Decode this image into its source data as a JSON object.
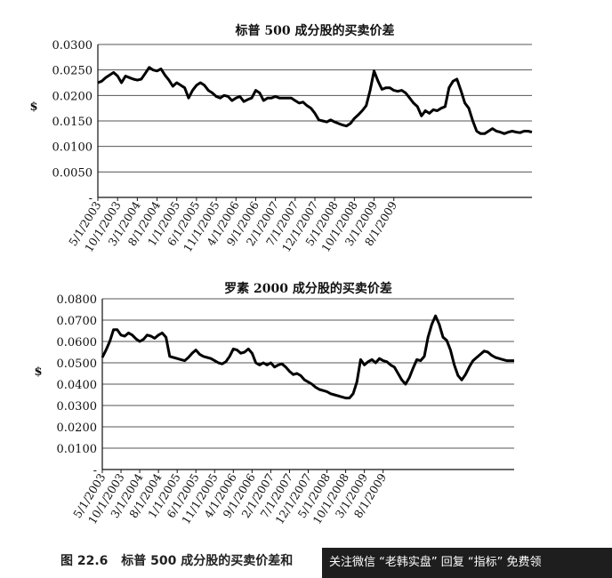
{
  "chart_data": [
    {
      "type": "line",
      "title": "标普 500 成分股的买卖价差",
      "ylabel": "$",
      "xlabel": "",
      "ylim": [
        0,
        0.03
      ],
      "y_ticks": [
        "0.0300",
        "0.0250",
        "0.0200",
        "0.0150",
        "0.0100",
        "0.0050",
        "-"
      ],
      "y_tick_values": [
        0.03,
        0.025,
        0.02,
        0.015,
        0.01,
        0.005,
        0
      ],
      "grid": true,
      "x_tick_labels": [
        "5/1/2003",
        "10/1/2003",
        "3/1/2004",
        "8/1/2004",
        "1/1/2005",
        "6/1/2005",
        "11/1/2005",
        "4/1/2006",
        "9/1/2006",
        "2/1/2007",
        "7/1/2007",
        "12/1/2007",
        "5/1/2008",
        "10/1/2008",
        "3/1/2009",
        "8/1/2009"
      ],
      "x_start": "2003-05",
      "series": [
        {
          "values": [
            0.0225,
            0.0228,
            0.0235,
            0.024,
            0.0245,
            0.0238,
            0.0225,
            0.0238,
            0.0235,
            0.0232,
            0.023,
            0.0232,
            0.0243,
            0.0255,
            0.025,
            0.0248,
            0.0252,
            0.024,
            0.023,
            0.0218,
            0.0225,
            0.022,
            0.0215,
            0.0195,
            0.021,
            0.022,
            0.0225,
            0.022,
            0.021,
            0.0205,
            0.0198,
            0.0195,
            0.02,
            0.0198,
            0.019,
            0.0195,
            0.0198,
            0.0188,
            0.0192,
            0.0195,
            0.021,
            0.0205,
            0.019,
            0.0195,
            0.0195,
            0.0198,
            0.0195,
            0.0195,
            0.0195,
            0.0195,
            0.019,
            0.0185,
            0.0187,
            0.018,
            0.0175,
            0.0165,
            0.0152,
            0.015,
            0.0148,
            0.0152,
            0.0148,
            0.0145,
            0.0142,
            0.014,
            0.0145,
            0.0155,
            0.0162,
            0.017,
            0.018,
            0.021,
            0.0248,
            0.0228,
            0.0212,
            0.0215,
            0.0215,
            0.021,
            0.0208,
            0.021,
            0.0205,
            0.0195,
            0.0185,
            0.0178,
            0.016,
            0.017,
            0.0165,
            0.0172,
            0.017,
            0.0175,
            0.0178,
            0.0215,
            0.0228,
            0.0232,
            0.021,
            0.0185,
            0.0175,
            0.015,
            0.013,
            0.0125,
            0.0125,
            0.013,
            0.0135,
            0.013,
            0.0128,
            0.0125,
            0.0128,
            0.013,
            0.0128,
            0.0127,
            0.013,
            0.013,
            0.0128
          ]
        }
      ]
    },
    {
      "type": "line",
      "title": "罗素 2000 成分股的买卖价差",
      "ylabel": "$",
      "xlabel": "",
      "ylim": [
        0,
        0.08
      ],
      "y_ticks": [
        "0.0800",
        "0.0700",
        "0.0600",
        "0.0500",
        "0.0400",
        "0.0300",
        "0.0200",
        "0.0100",
        "-"
      ],
      "y_tick_values": [
        0.08,
        0.07,
        0.06,
        0.05,
        0.04,
        0.03,
        0.02,
        0.01,
        0
      ],
      "grid": true,
      "x_tick_labels": [
        "5/1/2003",
        "10/1/2003",
        "3/1/2004",
        "8/1/2004",
        "1/1/2005",
        "6/1/2005",
        "11/1/2005",
        "4/1/2006",
        "9/1/2006",
        "2/1/2007",
        "7/1/2007",
        "12/1/2007",
        "5/1/2008",
        "10/1/2008",
        "3/1/2009",
        "8/1/2009"
      ],
      "x_start": "2003-05",
      "series": [
        {
          "values": [
            0.0525,
            0.056,
            0.06,
            0.0655,
            0.0655,
            0.063,
            0.0625,
            0.064,
            0.063,
            0.0612,
            0.06,
            0.061,
            0.063,
            0.0625,
            0.0615,
            0.063,
            0.064,
            0.062,
            0.053,
            0.0525,
            0.052,
            0.0515,
            0.051,
            0.0525,
            0.0545,
            0.056,
            0.054,
            0.053,
            0.0525,
            0.052,
            0.051,
            0.05,
            0.0495,
            0.0505,
            0.053,
            0.0565,
            0.056,
            0.0545,
            0.055,
            0.0565,
            0.0545,
            0.05,
            0.049,
            0.05,
            0.049,
            0.05,
            0.048,
            0.049,
            0.0495,
            0.048,
            0.046,
            0.0445,
            0.045,
            0.044,
            0.042,
            0.041,
            0.04,
            0.0385,
            0.0375,
            0.037,
            0.0365,
            0.0355,
            0.035,
            0.0345,
            0.034,
            0.0335,
            0.0335,
            0.0355,
            0.041,
            0.0515,
            0.049,
            0.0505,
            0.0515,
            0.05,
            0.052,
            0.051,
            0.0505,
            0.049,
            0.048,
            0.045,
            0.042,
            0.04,
            0.043,
            0.0475,
            0.0515,
            0.051,
            0.053,
            0.062,
            0.068,
            0.072,
            0.068,
            0.062,
            0.0605,
            0.056,
            0.049,
            0.044,
            0.042,
            0.0445,
            0.048,
            0.051,
            0.0525,
            0.054,
            0.0555,
            0.055,
            0.0535,
            0.0525,
            0.052,
            0.0515,
            0.051,
            0.051,
            0.051
          ]
        }
      ]
    }
  ],
  "caption": {
    "number": "图 22.6",
    "text": "标普 500 成分股的买卖价差和"
  },
  "watermark": {
    "text": "关注微信 “老韩实盘” 回复 “指标” 免费领"
  }
}
